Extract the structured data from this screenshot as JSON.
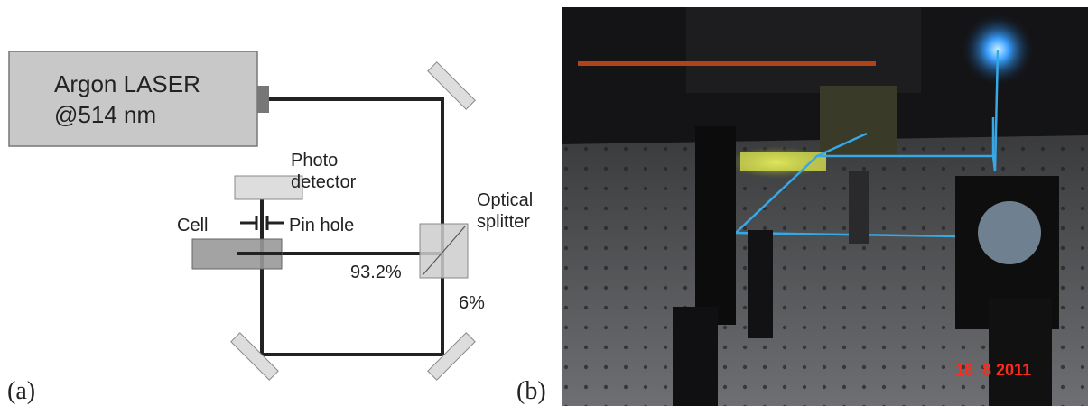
{
  "panel_a": {
    "label": "(a)",
    "laser": {
      "name": "Argon LASER",
      "wavelength": "@514 nm"
    },
    "photodetector": {
      "line1": "Photo",
      "line2": "detector"
    },
    "pinhole": "Pin hole",
    "cell": "Cell",
    "splitter": {
      "line1": "Optical",
      "line2": "splitter"
    },
    "transmitted": "93.2%",
    "reflected": "6%"
  },
  "panel_b": {
    "label": "(b)",
    "timestamp": "18  8 2011"
  }
}
